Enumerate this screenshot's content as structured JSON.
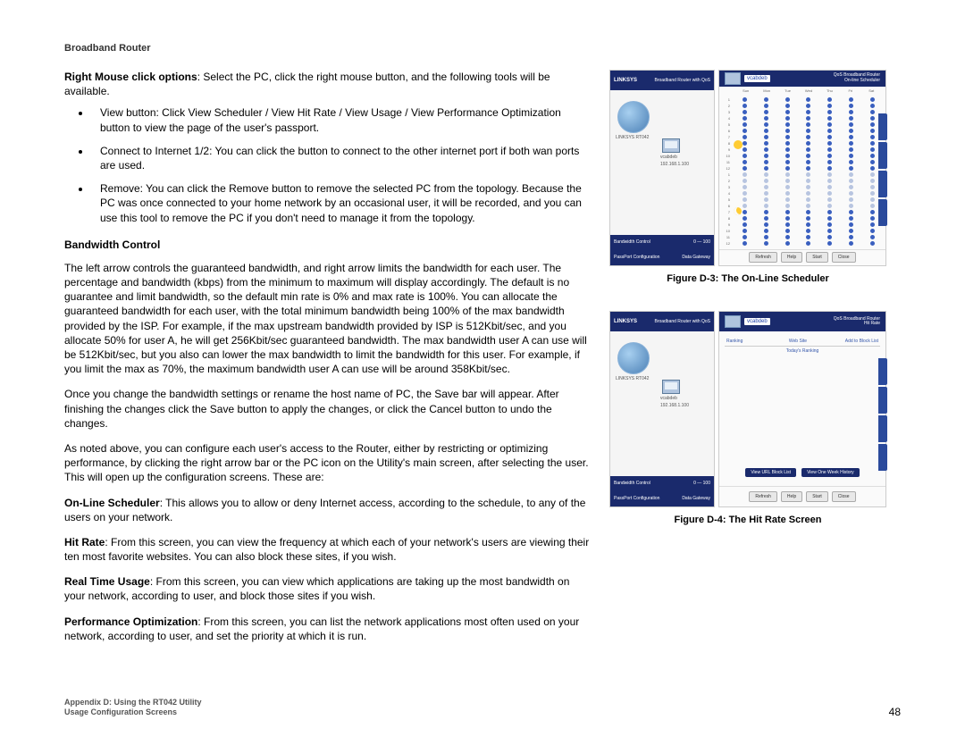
{
  "header": {
    "title": "Broadband Router"
  },
  "intro": {
    "lead": "Right Mouse click options",
    "rest": ": Select the PC, click the right mouse button, and the following tools will be available."
  },
  "bullets": [
    "View button: Click View Scheduler / View Hit Rate / View Usage / View Performance Optimization button to view the page of the user's passport.",
    "Connect to Internet 1/2: You can click the button to connect to the other internet port if both wan ports are used.",
    "Remove: You can click the Remove button to remove the selected PC from the topology. Because the PC was once connected to your home network by an occasional user, it will be recorded, and you can use this tool to remove the PC if you don't need to manage it from the topology."
  ],
  "section_heading": "Bandwidth Control",
  "paras": [
    "The left arrow controls the guaranteed bandwidth, and right arrow limits the bandwidth for each user. The percentage and bandwidth (kbps) from the minimum to maximum will display accordingly. The default is no guarantee and limit bandwidth, so the default min rate is 0% and max rate is 100%. You can allocate the guaranteed bandwidth for each user, with the total minimum bandwidth being 100% of the max bandwidth provided by the ISP. For example, if the max upstream bandwidth provided by ISP is 512Kbit/sec, and you allocate 50% for user A, he will get 256Kbit/sec guaranteed bandwidth. The max bandwidth user A can use will be 512Kbit/sec, but you also can lower the max bandwidth to limit the bandwidth for this user. For example, if you limit the max as 70%, the maximum bandwidth user A can use will be around 358Kbit/sec.",
    "Once you change the bandwidth settings or rename the host name of PC, the Save bar will appear. After finishing the changes click the Save button to apply the changes, or click the Cancel button to undo the changes.",
    "As noted above, you can configure each user's access to the Router, either by restricting or optimizing performance, by clicking the right arrow bar or the PC icon on the Utility's main screen, after selecting the user. This will open up the configuration screens. These are:"
  ],
  "features": [
    {
      "lead": "On-Line Scheduler",
      "rest": ": This allows you to allow or deny Internet access, according to the schedule, to any of the users on your network."
    },
    {
      "lead": "Hit Rate",
      "rest": ": From this screen, you can view the frequency at which each of your network's users are viewing their ten most favorite websites. You can also block these sites, if you wish."
    },
    {
      "lead": "Real Time Usage",
      "rest": ": From this screen, you can view which applications are taking up the most bandwidth on your network, according to user, and block those sites if you wish."
    },
    {
      "lead": "Performance Optimization",
      "rest": ": From this screen, you can list the network applications most often used on your network, according to user, and set the priority at which it is run."
    }
  ],
  "figures": {
    "d3": {
      "caption": "Figure D-3: The On-Line Scheduler",
      "logo": "LINKSYS",
      "product": "Broadband Router with QoS",
      "username": "vcabdeb",
      "right_title1": "QoS Broadband Router",
      "right_title2": "On-line Scheduler",
      "left_info1": "LINKSYS RT042",
      "left_info2": "vcabdeb",
      "left_info3": "192.168.1.100",
      "bw_label": "Bandwidth Control",
      "bw_range": "0 — 100",
      "days": [
        "Sun",
        "Mon",
        "Tue",
        "Wed",
        "Thu",
        "Fri",
        "Sat"
      ],
      "buttons": [
        "Refresh",
        "Help",
        "Start",
        "Close"
      ],
      "footer_left": "PassPort Configuration",
      "footer_right": "Data Gateway",
      "colors": {
        "header": "#1a2a6c",
        "dot_on": "#3a5fbf",
        "dot_off": "#b8c5e0",
        "sun": "#ffcc33"
      }
    },
    "d4": {
      "caption": "Figure D-4: The Hit Rate Screen",
      "logo": "LINKSYS",
      "product": "Broadband Router with QoS",
      "username": "vcabdeb",
      "right_title1": "QoS Broadband Router",
      "right_title2": "Hit Rate",
      "cols": [
        "Ranking",
        "Web Site",
        "Add to Block List"
      ],
      "ranking_title": "Today's Ranking",
      "buttons": [
        "View URL Block List",
        "View One Week History"
      ],
      "footer_buttons": [
        "Refresh",
        "Help",
        "Start",
        "Close"
      ],
      "footer_left": "PassPort Configuration",
      "footer_right": "Data Gateway"
    }
  },
  "footer": {
    "line1": "Appendix D: Using the RT042 Utility",
    "line2": "Usage Configuration Screens",
    "page": "48"
  }
}
